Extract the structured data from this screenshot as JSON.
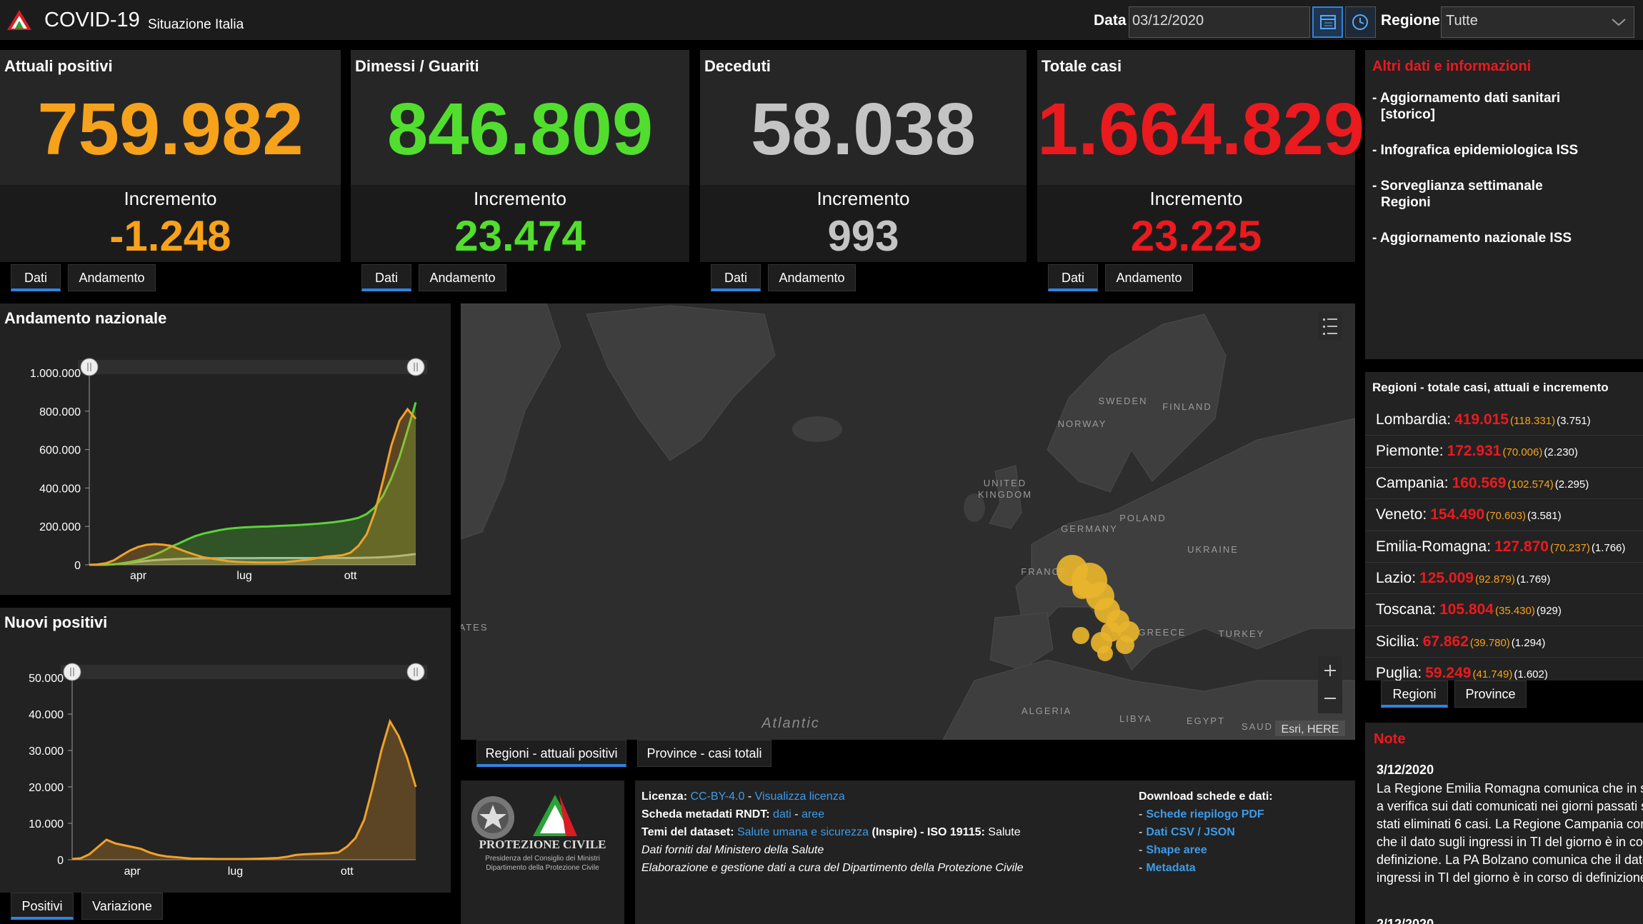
{
  "header": {
    "title": "COVID-19",
    "subtitle": "Situazione Italia",
    "date_label": "Data",
    "date": "03/12/2020",
    "region_label": "Regione",
    "region": "Tutte"
  },
  "cards": [
    {
      "title": "Attuali positivi",
      "value": "759.982",
      "increment_label": "Incremento",
      "increment": "-1.248",
      "color": "#f7a21b",
      "tabs": [
        "Dati",
        "Andamento"
      ]
    },
    {
      "title": "Dimessi / Guariti",
      "value": "846.809",
      "increment_label": "Incremento",
      "increment": "23.474",
      "color": "#52de2e",
      "tabs": [
        "Dati",
        "Andamento"
      ]
    },
    {
      "title": "Deceduti",
      "value": "58.038",
      "increment_label": "Incremento",
      "increment": "993",
      "color": "#c4c4c4",
      "tabs": [
        "Dati",
        "Andamento"
      ]
    },
    {
      "title": "Totale casi",
      "value": "1.664.829",
      "increment_label": "Incremento",
      "increment": "23.225",
      "color": "#ea1a1f",
      "tabs": [
        "Dati",
        "Andamento"
      ]
    }
  ],
  "chart_data": [
    {
      "type": "area",
      "title": "Andamento nazionale",
      "categories": [
        null,
        null,
        null,
        null,
        null,
        null,
        "apr",
        null,
        null,
        null,
        null,
        null,
        null,
        null,
        null,
        null,
        null,
        null,
        null,
        "lug",
        null,
        null,
        null,
        null,
        null,
        null,
        null,
        null,
        null,
        null,
        null,
        null,
        "ott",
        null,
        null,
        null,
        null,
        null,
        null,
        null,
        null
      ],
      "series": [
        {
          "color": "#b8b8b8",
          "values": [
            0,
            40,
            460,
            2500,
            6000,
            10800,
            15900,
            20500,
            24100,
            27000,
            29000,
            30600,
            32000,
            32900,
            33400,
            33900,
            34400,
            34700,
            34800,
            34900,
            35000,
            35100,
            35100,
            35200,
            35200,
            35400,
            35400,
            35500,
            35600,
            35700,
            35800,
            35900,
            36000,
            36400,
            37200,
            38000,
            39800,
            42900,
            46500,
            51300,
            56500
          ]
        },
        {
          "color": "#5ad33a",
          "values": [
            0,
            50,
            600,
            2800,
            8000,
            15000,
            24000,
            36000,
            52000,
            71000,
            94000,
            112000,
            132000,
            150000,
            163000,
            172000,
            181000,
            188000,
            192000,
            195000,
            197000,
            199000,
            200000,
            202000,
            204000,
            206000,
            208000,
            211000,
            214000,
            218000,
            222000,
            228000,
            235000,
            245000,
            265000,
            300000,
            360000,
            450000,
            560000,
            700000,
            846000
          ]
        },
        {
          "color": "#f0a22a",
          "values": [
            200,
            1800,
            7900,
            23000,
            50000,
            75000,
            93000,
            104000,
            108000,
            105000,
            99000,
            82000,
            66000,
            52000,
            39000,
            33000,
            26000,
            19000,
            16000,
            14000,
            13000,
            12300,
            12400,
            12600,
            14000,
            18000,
            23000,
            28000,
            36000,
            43000,
            46000,
            50000,
            63000,
            100000,
            160000,
            275000,
            440000,
            620000,
            750000,
            810000,
            760000
          ]
        }
      ],
      "ylim": [
        0,
        1000000
      ],
      "yticks": [
        0,
        {
          "value": 200000,
          "label": "200.000"
        },
        {
          "value": 400000,
          "label": "400.000"
        },
        {
          "value": 600000,
          "label": "600.000"
        },
        {
          "value": 800000,
          "label": "800.000"
        },
        {
          "value": 1000000,
          "label": "1.000.000"
        }
      ]
    },
    {
      "type": "area",
      "title": "Nuovi positivi",
      "categories": [
        null,
        null,
        null,
        null,
        null,
        null,
        null,
        "apr",
        null,
        null,
        null,
        null,
        null,
        null,
        null,
        null,
        null,
        null,
        null,
        "lug",
        null,
        null,
        null,
        null,
        null,
        null,
        null,
        null,
        null,
        null,
        null,
        null,
        "ott",
        null,
        null,
        null,
        null,
        null,
        null,
        null,
        null
      ],
      "series": [
        {
          "color": "#f0a22a",
          "values": [
            200,
            400,
            1500,
            3500,
            5500,
            4500,
            4000,
            3500,
            3000,
            2000,
            1300,
            900,
            700,
            500,
            300,
            300,
            250,
            200,
            200,
            200,
            200,
            250,
            300,
            400,
            500,
            800,
            1300,
            1500,
            1600,
            1700,
            1800,
            2000,
            3600,
            6000,
            11000,
            20000,
            30000,
            38000,
            34000,
            28000,
            20000
          ]
        }
      ],
      "ylim": [
        0,
        50000
      ],
      "yticks": [
        0,
        {
          "value": 10000,
          "label": "10.000"
        },
        {
          "value": 20000,
          "label": "20.000"
        },
        {
          "value": 30000,
          "label": "30.000"
        },
        {
          "value": 40000,
          "label": "40.000"
        },
        {
          "value": 50000,
          "label": "50.000"
        }
      ]
    }
  ],
  "chart_tabs": [
    "Positivi",
    "Variazione"
  ],
  "map": {
    "labels": [
      "SWEDEN",
      "FINLAND",
      "NORWAY",
      "UNITED",
      "KINGDOM",
      "GERMANY",
      "POLAND",
      "UKRAINE",
      "FRANCE",
      "GREECE",
      "TURKEY",
      "ALGERIA",
      "LIBYA",
      "EGYPT",
      "SAUD",
      "ATES"
    ],
    "ocean": "Atlantic",
    "attribution": "Esri, HERE",
    "bubble_color": "#e8b42c",
    "tabs": [
      "Regioni - attuali positivi",
      "Province - casi totali"
    ]
  },
  "logo": {
    "title": "PROTEZIONE CIVILE",
    "line1": "Presidenza del Consiglio dei Ministri",
    "line2": "Dipartimento della Protezione Civile"
  },
  "info": {
    "license": [
      "Licenza:",
      "CC-BY-4.0",
      "-",
      "Visualizza licenza"
    ],
    "metadata": [
      "Scheda metadati RNDT:",
      "dati",
      "-",
      "aree"
    ],
    "themes": [
      "Temi del dataset:",
      "Salute umana e sicurezza",
      "(Inspire) - ISO 19115:",
      "Salute"
    ],
    "source": "Dati forniti dal Ministero della Salute",
    "processing": "Elaborazione e gestione dati a cura del Dipartimento della Protezione Civile",
    "download_title": "Download schede e dati:",
    "bullet": "-",
    "downloads": [
      "Schede riepilogo PDF",
      "Dati CSV / JSON",
      "Shape aree",
      "Metadata"
    ]
  },
  "links": {
    "title": "Altri dati e informazioni",
    "items": [
      "- Aggiornamento dati sanitari [storico]",
      "- Infografica epidemiologica ISS",
      "- Sorveglianza settimanale Regioni",
      "- Aggiornamento nazionale ISS"
    ]
  },
  "regions": {
    "title": "Regioni - totale casi, attuali e incremento",
    "rows": [
      [
        "Lombardia:",
        "419.015",
        "(118.331)",
        "(3.751)"
      ],
      [
        "Piemonte:",
        "172.931",
        "(70.006)",
        "(2.230)"
      ],
      [
        "Campania:",
        "160.569",
        "(102.574)",
        "(2.295)"
      ],
      [
        "Veneto:",
        "154.490",
        "(70.603)",
        "(3.581)"
      ],
      [
        "Emilia-Romagna:",
        "127.870",
        "(70.237)",
        "(1.766)"
      ],
      [
        "Lazio:",
        "125.009",
        "(92.879)",
        "(1.769)"
      ],
      [
        "Toscana:",
        "105.804",
        "(35.430)",
        "(929)"
      ],
      [
        "Sicilia:",
        "67.862",
        "(39.780)",
        "(1.294)"
      ],
      [
        "Puglia:",
        "59.249",
        "(41.749)",
        "(1.602)"
      ]
    ],
    "tabs": [
      "Regioni",
      "Province"
    ]
  },
  "note": {
    "title": "Note",
    "date": "3/12/2020",
    "lines": [
      "La Regione Emilia Romagna comunica che in se",
      "a verifica sui dati comunicati nei giorni passati s",
      "stati eliminati 6 casi. La Regione Campania com",
      "che il dato sugli ingressi in TI del giorno è in co",
      "definizione. La PA Bolzano comunica che il dato",
      "ingressi in TI del giorno è in corso di definizione"
    ],
    "next_date": "2/12/2020"
  }
}
